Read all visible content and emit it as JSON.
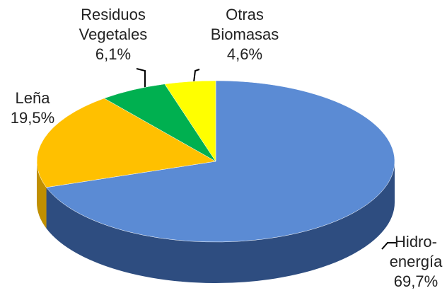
{
  "chart_data": {
    "type": "pie3d",
    "categories": [
      [
        "Hidro-",
        "energía"
      ],
      [
        "Leña"
      ],
      [
        "Residuos",
        "Vegetales"
      ],
      [
        "Otras",
        "Biomasas"
      ]
    ],
    "values": [
      69.7,
      19.5,
      6.1,
      4.6
    ],
    "value_labels": [
      "69,7%",
      "19,5%",
      "6,1%",
      "4,6%"
    ],
    "colors": [
      "#5b8bd4",
      "#ffc000",
      "#00b050",
      "#ffff00"
    ],
    "side_colors": [
      "#2e4d80",
      "#c08f00",
      "#007a38",
      "#c8c800"
    ]
  }
}
